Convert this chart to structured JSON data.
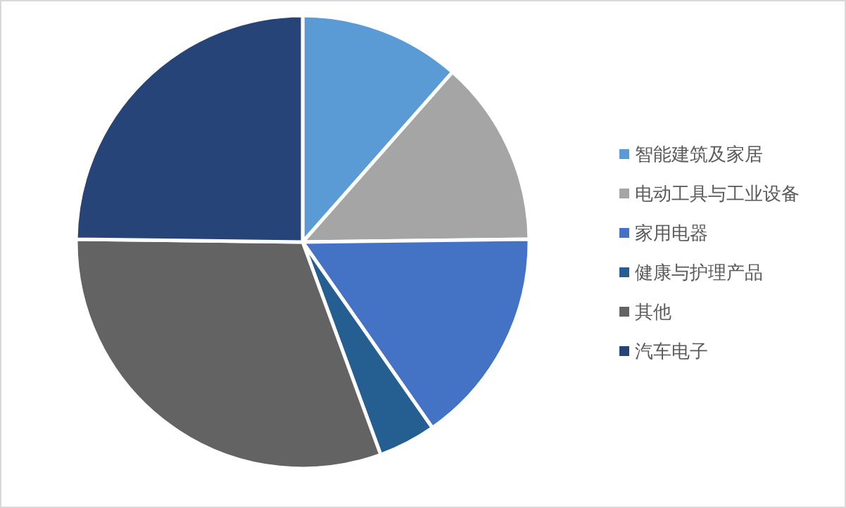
{
  "chart_data": {
    "type": "pie",
    "legend": "right",
    "categories": [
      "智能建筑及家居",
      "电动工具与工业设备",
      "家用电器",
      "健康与护理产品",
      "其他",
      "汽车电子"
    ],
    "values": [
      11.5,
      13.3,
      15.5,
      4.1,
      30.8,
      24.8
    ],
    "colors": [
      "#5b9bd5",
      "#a5a5a5",
      "#4472c4",
      "#255e91",
      "#636363",
      "#264478"
    ]
  }
}
